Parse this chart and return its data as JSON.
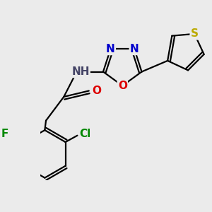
{
  "bg_color": "#ebebeb",
  "bond_color": "#000000",
  "bond_width": 1.6,
  "atom_colors": {
    "N": "#0000cc",
    "O": "#dd0000",
    "F": "#008800",
    "Cl": "#008800",
    "S": "#bbaa00",
    "H": "#444466",
    "C": "#000000"
  },
  "font_size": 11,
  "font_size_small": 10
}
